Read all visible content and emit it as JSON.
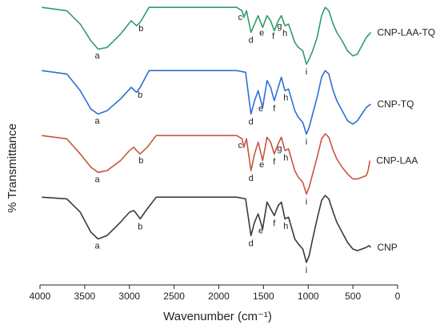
{
  "chart_data": {
    "type": "line",
    "xlabel": "Wavenumber (cm⁻¹)",
    "ylabel": "% Transmittance",
    "xlim": [
      4000,
      0
    ],
    "x_ticks": [
      4000,
      3500,
      3000,
      2500,
      2000,
      1500,
      1000,
      500,
      0
    ],
    "x_tick_labels": [
      "4000",
      "3500",
      "3000",
      "2500",
      "2000",
      "1500",
      "1000",
      "500",
      "0"
    ],
    "y_ticks_shown": false,
    "series": [
      {
        "name": "CNP-LAA-TQ",
        "color": "#2e9e6a",
        "points": [
          [
            3980,
            98
          ],
          [
            3700,
            96
          ],
          [
            3550,
            88
          ],
          [
            3430,
            78
          ],
          [
            3350,
            73
          ],
          [
            3250,
            74
          ],
          [
            3100,
            82
          ],
          [
            2980,
            90
          ],
          [
            2920,
            87
          ],
          [
            2880,
            89
          ],
          [
            2780,
            98
          ],
          [
            1800,
            98
          ],
          [
            1740,
            96
          ],
          [
            1720,
            92
          ],
          [
            1690,
            96
          ],
          [
            1640,
            83
          ],
          [
            1600,
            88
          ],
          [
            1560,
            93
          ],
          [
            1510,
            86
          ],
          [
            1460,
            93
          ],
          [
            1420,
            90
          ],
          [
            1380,
            84
          ],
          [
            1335,
            90
          ],
          [
            1300,
            93
          ],
          [
            1260,
            87
          ],
          [
            1220,
            88
          ],
          [
            1150,
            77
          ],
          [
            1110,
            74
          ],
          [
            1060,
            72
          ],
          [
            1020,
            64
          ],
          [
            990,
            67
          ],
          [
            950,
            72
          ],
          [
            900,
            80
          ],
          [
            850,
            93
          ],
          [
            810,
            98
          ],
          [
            770,
            96
          ],
          [
            720,
            88
          ],
          [
            680,
            83
          ],
          [
            620,
            78
          ],
          [
            560,
            72
          ],
          [
            500,
            69
          ],
          [
            450,
            70
          ],
          [
            400,
            75
          ],
          [
            350,
            80
          ],
          [
            300,
            83
          ]
        ]
      },
      {
        "name": "CNP-TQ",
        "color": "#2e6fd6",
        "points": [
          [
            3980,
            98
          ],
          [
            3700,
            96
          ],
          [
            3550,
            86
          ],
          [
            3430,
            75
          ],
          [
            3350,
            72
          ],
          [
            3250,
            74
          ],
          [
            3100,
            81
          ],
          [
            2980,
            88
          ],
          [
            2920,
            85
          ],
          [
            2880,
            88
          ],
          [
            2780,
            98
          ],
          [
            1800,
            98
          ],
          [
            1700,
            97
          ],
          [
            1640,
            72
          ],
          [
            1600,
            80
          ],
          [
            1560,
            86
          ],
          [
            1510,
            76
          ],
          [
            1460,
            92
          ],
          [
            1420,
            88
          ],
          [
            1380,
            80
          ],
          [
            1335,
            88
          ],
          [
            1300,
            94
          ],
          [
            1260,
            86
          ],
          [
            1220,
            87
          ],
          [
            1150,
            74
          ],
          [
            1110,
            70
          ],
          [
            1060,
            67
          ],
          [
            1020,
            60
          ],
          [
            990,
            64
          ],
          [
            950,
            72
          ],
          [
            900,
            82
          ],
          [
            850,
            94
          ],
          [
            810,
            98
          ],
          [
            770,
            96
          ],
          [
            720,
            86
          ],
          [
            680,
            80
          ],
          [
            620,
            74
          ],
          [
            560,
            68
          ],
          [
            500,
            66
          ],
          [
            450,
            68
          ],
          [
            400,
            72
          ],
          [
            350,
            76
          ],
          [
            300,
            78
          ]
        ]
      },
      {
        "name": "CNP-LAA",
        "color": "#c8553d",
        "points": [
          [
            3980,
            97
          ],
          [
            3700,
            95
          ],
          [
            3550,
            86
          ],
          [
            3430,
            78
          ],
          [
            3350,
            75
          ],
          [
            3250,
            76
          ],
          [
            3100,
            82
          ],
          [
            3000,
            88
          ],
          [
            2950,
            90
          ],
          [
            2920,
            88
          ],
          [
            2880,
            86
          ],
          [
            2800,
            90
          ],
          [
            2700,
            97
          ],
          [
            1800,
            97
          ],
          [
            1740,
            95
          ],
          [
            1720,
            90
          ],
          [
            1690,
            95
          ],
          [
            1640,
            76
          ],
          [
            1600,
            86
          ],
          [
            1560,
            93
          ],
          [
            1510,
            82
          ],
          [
            1460,
            96
          ],
          [
            1420,
            93
          ],
          [
            1380,
            86
          ],
          [
            1335,
            92
          ],
          [
            1300,
            96
          ],
          [
            1260,
            88
          ],
          [
            1220,
            89
          ],
          [
            1150,
            76
          ],
          [
            1110,
            72
          ],
          [
            1060,
            69
          ],
          [
            1020,
            62
          ],
          [
            990,
            66
          ],
          [
            950,
            74
          ],
          [
            900,
            84
          ],
          [
            850,
            95
          ],
          [
            810,
            98
          ],
          [
            770,
            96
          ],
          [
            720,
            88
          ],
          [
            680,
            83
          ],
          [
            620,
            78
          ],
          [
            560,
            74
          ],
          [
            500,
            71
          ],
          [
            450,
            71
          ],
          [
            400,
            72
          ],
          [
            350,
            73
          ],
          [
            330,
            76
          ],
          [
            310,
            82
          ]
        ]
      },
      {
        "name": "CNP",
        "color": "#3a3a3a",
        "points": [
          [
            3980,
            97
          ],
          [
            3700,
            96
          ],
          [
            3550,
            88
          ],
          [
            3430,
            76
          ],
          [
            3350,
            72
          ],
          [
            3250,
            74
          ],
          [
            3100,
            82
          ],
          [
            3000,
            88
          ],
          [
            2950,
            89
          ],
          [
            2920,
            87
          ],
          [
            2880,
            84
          ],
          [
            2800,
            90
          ],
          [
            2700,
            97
          ],
          [
            1800,
            97
          ],
          [
            1700,
            96
          ],
          [
            1640,
            74
          ],
          [
            1600,
            82
          ],
          [
            1560,
            87
          ],
          [
            1510,
            78
          ],
          [
            1460,
            94
          ],
          [
            1420,
            90
          ],
          [
            1380,
            86
          ],
          [
            1335,
            92
          ],
          [
            1300,
            94
          ],
          [
            1260,
            84
          ],
          [
            1220,
            85
          ],
          [
            1150,
            72
          ],
          [
            1110,
            69
          ],
          [
            1060,
            66
          ],
          [
            1020,
            58
          ],
          [
            990,
            62
          ],
          [
            950,
            72
          ],
          [
            900,
            84
          ],
          [
            850,
            95
          ],
          [
            810,
            98
          ],
          [
            770,
            96
          ],
          [
            720,
            88
          ],
          [
            680,
            82
          ],
          [
            620,
            76
          ],
          [
            560,
            70
          ],
          [
            500,
            66
          ],
          [
            450,
            65
          ],
          [
            400,
            66
          ],
          [
            350,
            67
          ],
          [
            320,
            68
          ],
          [
            300,
            67
          ]
        ]
      }
    ],
    "annotations": [
      {
        "series": "CNP-LAA-TQ",
        "text": "a",
        "x": 3360
      },
      {
        "series": "CNP-LAA-TQ",
        "text": "b",
        "x": 2870
      },
      {
        "series": "CNP-LAA-TQ",
        "text": "c",
        "x": 1760
      },
      {
        "series": "CNP-LAA-TQ",
        "text": "d",
        "x": 1640
      },
      {
        "series": "CNP-LAA-TQ",
        "text": "e",
        "x": 1520
      },
      {
        "series": "CNP-LAA-TQ",
        "text": "f",
        "x": 1390
      },
      {
        "series": "CNP-LAA-TQ",
        "text": "g",
        "x": 1320
      },
      {
        "series": "CNP-LAA-TQ",
        "text": "h",
        "x": 1260
      },
      {
        "series": "CNP-LAA-TQ",
        "text": "i",
        "x": 1020
      },
      {
        "series": "CNP-TQ",
        "text": "a",
        "x": 3360
      },
      {
        "series": "CNP-TQ",
        "text": "b",
        "x": 2880
      },
      {
        "series": "CNP-TQ",
        "text": "d",
        "x": 1640
      },
      {
        "series": "CNP-TQ",
        "text": "e",
        "x": 1530
      },
      {
        "series": "CNP-TQ",
        "text": "f",
        "x": 1380
      },
      {
        "series": "CNP-TQ",
        "text": "h",
        "x": 1250
      },
      {
        "series": "CNP-TQ",
        "text": "i",
        "x": 1020
      },
      {
        "series": "CNP-LAA",
        "text": "a",
        "x": 3360
      },
      {
        "series": "CNP-LAA",
        "text": "b",
        "x": 2870
      },
      {
        "series": "CNP-LAA",
        "text": "c",
        "x": 1760
      },
      {
        "series": "CNP-LAA",
        "text": "d",
        "x": 1640
      },
      {
        "series": "CNP-LAA",
        "text": "e",
        "x": 1520
      },
      {
        "series": "CNP-LAA",
        "text": "f",
        "x": 1380
      },
      {
        "series": "CNP-LAA",
        "text": "g",
        "x": 1320
      },
      {
        "series": "CNP-LAA",
        "text": "h",
        "x": 1250
      },
      {
        "series": "CNP-LAA",
        "text": "i",
        "x": 1020
      },
      {
        "series": "CNP",
        "text": "a",
        "x": 3360
      },
      {
        "series": "CNP",
        "text": "b",
        "x": 2880
      },
      {
        "series": "CNP",
        "text": "d",
        "x": 1640
      },
      {
        "series": "CNP",
        "text": "e",
        "x": 1530
      },
      {
        "series": "CNP",
        "text": "f",
        "x": 1380
      },
      {
        "series": "CNP",
        "text": "h",
        "x": 1250
      },
      {
        "series": "CNP",
        "text": "i",
        "x": 1020
      }
    ]
  }
}
